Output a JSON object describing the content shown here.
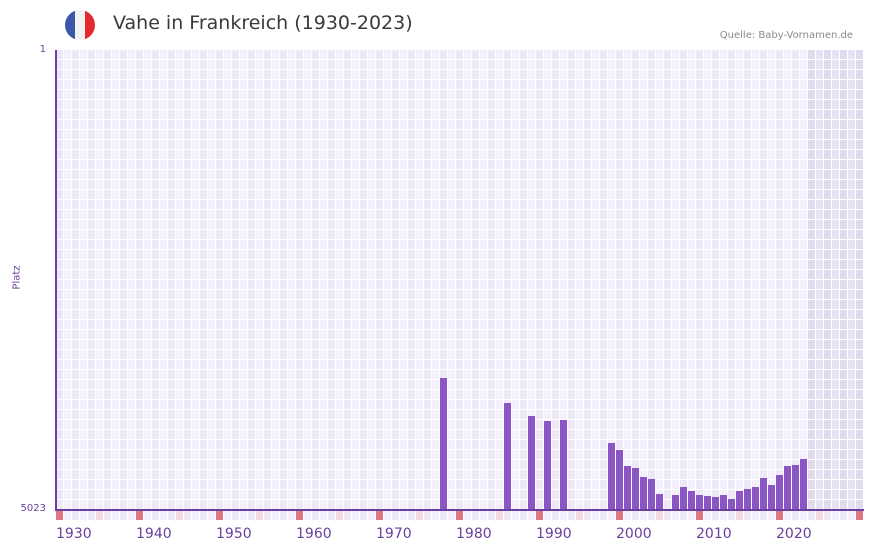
{
  "header": {
    "title": "Vahe in Frankreich (1930-2023)",
    "source": "Quelle: Baby-Vornamen.de",
    "flag_icon": "france-flag-icon",
    "flag_colors": [
      "#3a57a7",
      "#f3f3f3",
      "#e52a2f"
    ]
  },
  "colors": {
    "bar": "#8b55c6",
    "axis": "#6a3fa0",
    "grid_a": "#ede8f8",
    "grid_b": "#f3f0fb",
    "future_shade": "#e3dff0",
    "decade_marker": "#e07480",
    "midmarker": "#f4d9e0"
  },
  "chart_data": {
    "type": "bar",
    "title": "Vahe in Frankreich (1930-2023)",
    "xlabel": "",
    "ylabel": "Platz",
    "y_axis_inverted": true,
    "ylim": [
      5023,
      1
    ],
    "y_ticks": [
      "1",
      "5023"
    ],
    "x_range": [
      1930,
      2030
    ],
    "x_ticks": [
      "1930",
      "1940",
      "1950",
      "1960",
      "1970",
      "1980",
      "1990",
      "2000",
      "2010",
      "2020"
    ],
    "grid": true,
    "future_shaded_from": 2024,
    "categories": [
      1978,
      1986,
      1989,
      1991,
      1993,
      1999,
      2000,
      2001,
      2002,
      2003,
      2004,
      2005,
      2007,
      2008,
      2009,
      2010,
      2011,
      2012,
      2013,
      2014,
      2015,
      2016,
      2017,
      2018,
      2019,
      2020,
      2021,
      2022,
      2023
    ],
    "values": [
      3582,
      3854,
      3996,
      4050,
      4040,
      4291,
      4368,
      4542,
      4564,
      4662,
      4684,
      4847,
      4858,
      4771,
      4815,
      4858,
      4869,
      4880,
      4858,
      4902,
      4815,
      4793,
      4771,
      4673,
      4749,
      4640,
      4542,
      4531,
      4465
    ]
  }
}
